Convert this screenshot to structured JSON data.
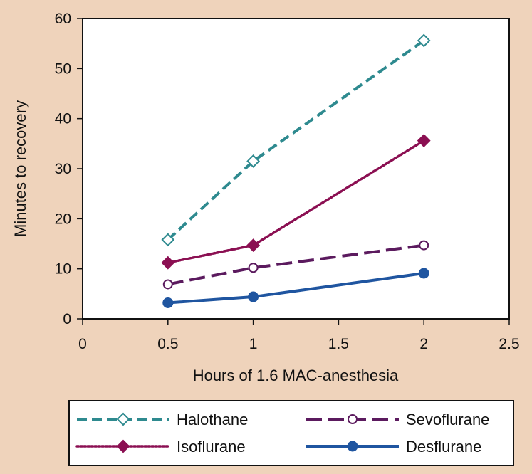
{
  "chart_data": {
    "type": "line",
    "xlabel": "Hours of 1.6 MAC-anesthesia",
    "ylabel": "Minutes to recovery",
    "xlim": [
      0,
      2.5
    ],
    "ylim": [
      0,
      60
    ],
    "xticks": [
      "0",
      "0.5",
      "1",
      "1.5",
      "2",
      "2.5"
    ],
    "yticks": [
      "0",
      "10",
      "20",
      "30",
      "40",
      "50",
      "60"
    ],
    "grid": false,
    "legend_position": "bottom",
    "series": [
      {
        "name": "Halothane",
        "x": [
          0.5,
          1,
          2
        ],
        "y": [
          15.8,
          31.5,
          55.6
        ],
        "color": "#2e8a8f",
        "line": "dashed",
        "marker": "open-diamond"
      },
      {
        "name": "Sevoflurane",
        "x": [
          0.5,
          1,
          2
        ],
        "y": [
          6.9,
          10.2,
          14.7
        ],
        "color": "#5b1a5e",
        "line": "long-dashed",
        "marker": "open-circle"
      },
      {
        "name": "Isoflurane",
        "x": [
          0.5,
          1,
          2
        ],
        "y": [
          11.2,
          14.7,
          35.6
        ],
        "color": "#8b0f52",
        "line": "dotted",
        "marker": "filled-diamond"
      },
      {
        "name": "Desflurane",
        "x": [
          0.5,
          1,
          2
        ],
        "y": [
          3.2,
          4.4,
          9.1
        ],
        "color": "#1f55a0",
        "line": "solid",
        "marker": "filled-circle"
      }
    ]
  }
}
